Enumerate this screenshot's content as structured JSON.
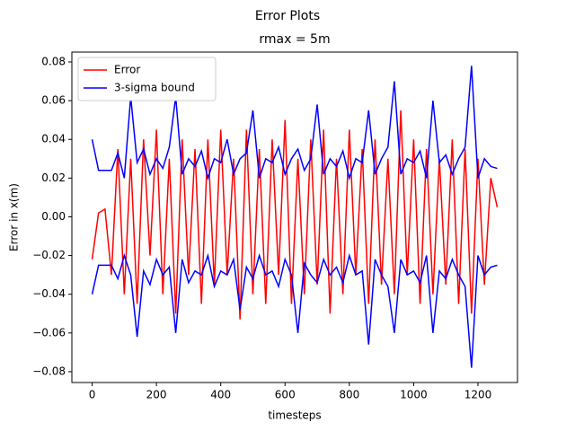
{
  "chart_data": {
    "type": "line",
    "title": "Error Plots",
    "subtitle": "rmax = 5m",
    "x_label": "timesteps",
    "y_label": "Error in x(m)",
    "x": [
      0,
      20,
      40,
      60,
      80,
      100,
      120,
      140,
      160,
      180,
      200,
      220,
      240,
      260,
      280,
      300,
      320,
      340,
      360,
      380,
      400,
      420,
      440,
      460,
      480,
      500,
      520,
      540,
      560,
      580,
      600,
      620,
      640,
      660,
      680,
      700,
      720,
      740,
      760,
      780,
      800,
      820,
      840,
      860,
      880,
      900,
      920,
      940,
      960,
      980,
      1000,
      1020,
      1040,
      1060,
      1080,
      1100,
      1120,
      1140,
      1160,
      1180,
      1200,
      1220,
      1240,
      1260
    ],
    "series": [
      {
        "name": "Error",
        "color": "#ff0000",
        "values": [
          -0.022,
          0.002,
          0.004,
          -0.03,
          0.035,
          -0.04,
          0.03,
          -0.045,
          0.04,
          -0.02,
          0.045,
          -0.04,
          0.03,
          -0.05,
          0.04,
          -0.03,
          0.035,
          -0.045,
          0.04,
          -0.035,
          0.045,
          -0.03,
          0.03,
          -0.053,
          0.045,
          -0.04,
          0.035,
          -0.045,
          0.04,
          -0.03,
          0.05,
          -0.045,
          0.03,
          -0.04,
          0.04,
          -0.035,
          0.045,
          -0.05,
          0.03,
          -0.04,
          0.045,
          -0.03,
          0.035,
          -0.045,
          0.04,
          -0.035,
          0.03,
          -0.04,
          0.055,
          -0.03,
          0.04,
          -0.045,
          0.035,
          -0.04,
          0.03,
          -0.035,
          0.04,
          -0.045,
          0.035,
          -0.05,
          0.03,
          -0.035,
          0.02,
          0.005
        ]
      },
      {
        "name": "3-sigma bound",
        "color": "#0000ff",
        "values": [
          0.04,
          0.024,
          0.024,
          0.024,
          0.033,
          0.02,
          0.062,
          0.028,
          0.035,
          0.022,
          0.03,
          0.025,
          0.036,
          0.062,
          0.022,
          0.03,
          0.026,
          0.034,
          0.02,
          0.03,
          0.028,
          0.04,
          0.022,
          0.03,
          0.033,
          0.055,
          0.02,
          0.03,
          0.028,
          0.036,
          0.022,
          0.03,
          0.035,
          0.024,
          0.03,
          0.058,
          0.022,
          0.03,
          0.026,
          0.034,
          0.02,
          0.03,
          0.028,
          0.055,
          0.022,
          0.03,
          0.036,
          0.07,
          0.022,
          0.03,
          0.028,
          0.034,
          0.02,
          0.06,
          0.028,
          0.032,
          0.022,
          0.03,
          0.036,
          0.078,
          0.02,
          0.03,
          0.026,
          0.025
        ],
        "lower": [
          -0.04,
          -0.025,
          -0.025,
          -0.025,
          -0.032,
          -0.02,
          -0.03,
          -0.062,
          -0.028,
          -0.035,
          -0.022,
          -0.03,
          -0.026,
          -0.06,
          -0.022,
          -0.034,
          -0.028,
          -0.03,
          -0.02,
          -0.036,
          -0.028,
          -0.03,
          -0.022,
          -0.048,
          -0.026,
          -0.032,
          -0.02,
          -0.03,
          -0.028,
          -0.036,
          -0.022,
          -0.03,
          -0.06,
          -0.024,
          -0.03,
          -0.034,
          -0.022,
          -0.03,
          -0.026,
          -0.034,
          -0.02,
          -0.03,
          -0.028,
          -0.066,
          -0.022,
          -0.03,
          -0.036,
          -0.06,
          -0.022,
          -0.03,
          -0.028,
          -0.034,
          -0.02,
          -0.06,
          -0.028,
          -0.032,
          -0.022,
          -0.03,
          -0.036,
          -0.078,
          -0.02,
          -0.03,
          -0.026,
          -0.025
        ]
      }
    ],
    "xlim": [
      -63,
      1323
    ],
    "ylim": [
      -0.0856,
      0.0851
    ],
    "xticks": [
      0,
      200,
      400,
      600,
      800,
      1000,
      1200
    ],
    "yticks": [
      {
        "value": -0.08,
        "label": "−0.08"
      },
      {
        "value": -0.06,
        "label": "−0.06"
      },
      {
        "value": -0.04,
        "label": "−0.04"
      },
      {
        "value": -0.02,
        "label": "−0.02"
      },
      {
        "value": 0,
        "label": "0.00"
      },
      0.02,
      0.04,
      0.06,
      0.08
    ],
    "legend": "upper left"
  }
}
